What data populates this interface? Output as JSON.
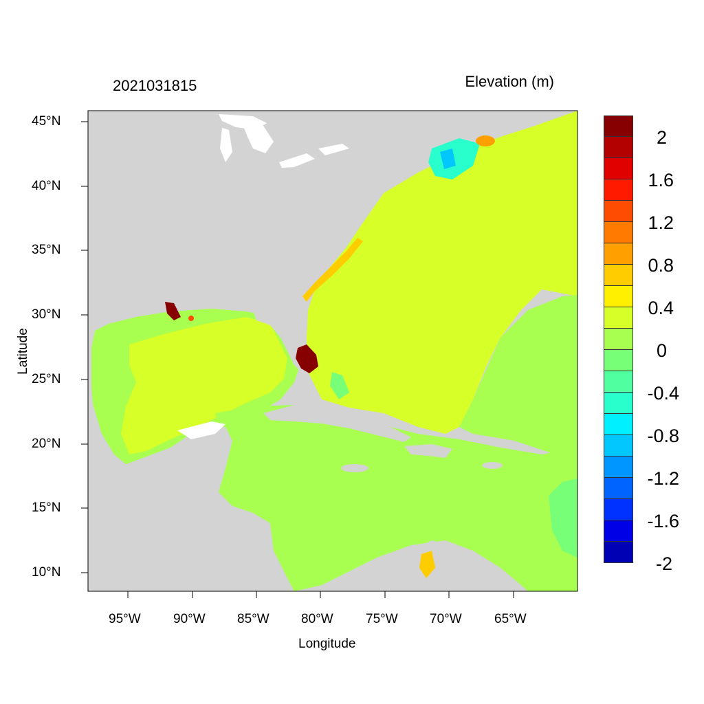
{
  "header": {
    "timestamp": "2021031815",
    "variable_title": "Elevation (m)"
  },
  "axes": {
    "xlabel": "Longitude",
    "ylabel": "Latitude",
    "x_ticks": [
      "95°W",
      "90°W",
      "85°W",
      "80°W",
      "75°W",
      "70°W",
      "65°W"
    ],
    "y_ticks": [
      "45°N",
      "40°N",
      "35°N",
      "30°N",
      "25°N",
      "20°N",
      "15°N",
      "10°N"
    ],
    "lon_range": [
      -98,
      -60
    ],
    "lat_range": [
      8.5,
      46
    ]
  },
  "colorbar": {
    "labels": [
      "2",
      "1.6",
      "1.2",
      "0.8",
      "0.4",
      "0",
      "-0.4",
      "-0.8",
      "-1.2",
      "-1.6",
      "-2"
    ],
    "colors": [
      "#870000",
      "#b30000",
      "#e00000",
      "#ff1a00",
      "#ff4d00",
      "#ff7a00",
      "#ffa000",
      "#ffcc00",
      "#fff000",
      "#d7ff28",
      "#a8ff50",
      "#78ff78",
      "#50ffa0",
      "#28ffcc",
      "#00f0ff",
      "#00c8ff",
      "#0096ff",
      "#0064ff",
      "#0032ff",
      "#0000e6",
      "#0000b4"
    ]
  },
  "map": {
    "land_color": "#d3d3d3",
    "water_color": "#ffffff"
  }
}
